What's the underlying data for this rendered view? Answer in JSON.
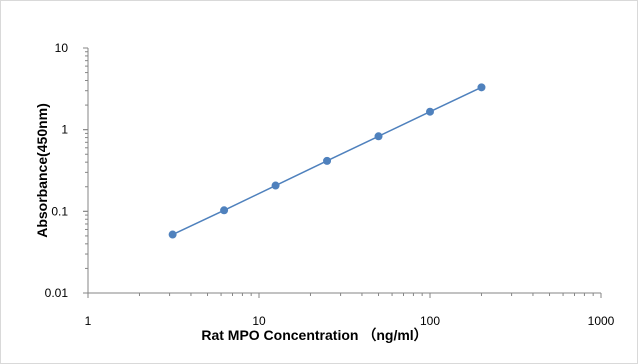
{
  "chart_data": {
    "type": "scatter",
    "title": "",
    "xlabel": "Rat MPO Concentration （ng/ml）",
    "ylabel": "Absorbance(450nm)",
    "x_scale": "log",
    "y_scale": "log",
    "xlim": [
      1,
      1000
    ],
    "ylim": [
      0.01,
      10
    ],
    "x_ticks": [
      "1",
      "10",
      "100",
      "1000"
    ],
    "y_ticks": [
      "0.01",
      "0.1",
      "1",
      "10"
    ],
    "grid": false,
    "legend": "none",
    "series": [
      {
        "color": "#4f81bd",
        "line": true,
        "x": [
          3.125,
          6.25,
          12.5,
          25,
          50,
          100,
          200
        ],
        "y": [
          0.052,
          0.103,
          0.207,
          0.415,
          0.83,
          1.66,
          3.3
        ]
      }
    ]
  }
}
